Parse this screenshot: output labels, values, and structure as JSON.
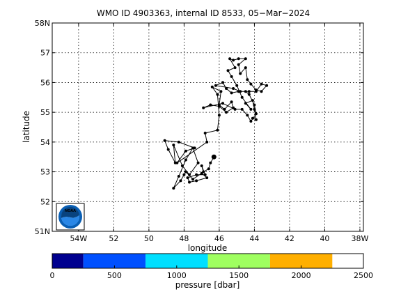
{
  "chart_data": {
    "type": "line",
    "title": "WMO ID 4903363, internal ID 8533, 05−Mar−2024",
    "xlabel": "longitude",
    "ylabel": "latitude",
    "xlim": [
      -55.5,
      -37.8
    ],
    "ylim": [
      51,
      58
    ],
    "grid": true,
    "x_ticks": [
      {
        "value": -54,
        "label": "54W"
      },
      {
        "value": -52,
        "label": "52"
      },
      {
        "value": -50,
        "label": "50"
      },
      {
        "value": -48,
        "label": "48"
      },
      {
        "value": -46,
        "label": "46"
      },
      {
        "value": -44,
        "label": "44"
      },
      {
        "value": -42,
        "label": "42"
      },
      {
        "value": -40,
        "label": "40"
      },
      {
        "value": -38,
        "label": "38W"
      }
    ],
    "y_ticks": [
      {
        "value": 51,
        "label": "51N"
      },
      {
        "value": 52,
        "label": "52"
      },
      {
        "value": 53,
        "label": "53"
      },
      {
        "value": 54,
        "label": "54"
      },
      {
        "value": 55,
        "label": "55"
      },
      {
        "value": 56,
        "label": "56"
      },
      {
        "value": 57,
        "label": "57"
      },
      {
        "value": 58,
        "label": "58N"
      }
    ],
    "series": [
      {
        "color": "#000000",
        "points": [
          [
            -46.3,
            53.5
          ],
          [
            -46.5,
            53.3
          ],
          [
            -46.6,
            53.1
          ],
          [
            -46.9,
            53.0
          ],
          [
            -47.0,
            53.2
          ],
          [
            -46.8,
            52.9
          ],
          [
            -47.3,
            52.9
          ],
          [
            -47.8,
            52.8
          ],
          [
            -47.7,
            52.65
          ],
          [
            -47.3,
            52.7
          ],
          [
            -46.7,
            52.8
          ],
          [
            -47.0,
            52.95
          ],
          [
            -47.5,
            52.75
          ],
          [
            -47.9,
            53.0
          ],
          [
            -48.0,
            52.9
          ],
          [
            -48.2,
            52.7
          ],
          [
            -48.6,
            52.45
          ],
          [
            -48.3,
            52.85
          ],
          [
            -47.9,
            53.4
          ],
          [
            -47.5,
            53.8
          ],
          [
            -47.2,
            53.3
          ],
          [
            -47.7,
            52.9
          ],
          [
            -48.1,
            53.2
          ],
          [
            -48.6,
            53.9
          ],
          [
            -48.5,
            53.3
          ],
          [
            -48.9,
            53.75
          ],
          [
            -49.1,
            54.05
          ],
          [
            -48.3,
            54.0
          ],
          [
            -47.4,
            53.8
          ],
          [
            -47.9,
            53.7
          ],
          [
            -48.4,
            53.3
          ],
          [
            -46.7,
            54.0
          ],
          [
            -46.8,
            54.3
          ],
          [
            -46.1,
            54.4
          ],
          [
            -46.0,
            54.9
          ],
          [
            -46.1,
            55.6
          ],
          [
            -46.4,
            55.85
          ],
          [
            -45.9,
            55.7
          ],
          [
            -46.0,
            55.25
          ],
          [
            -45.7,
            55.1
          ],
          [
            -45.3,
            55.35
          ],
          [
            -45.2,
            55.15
          ],
          [
            -45.6,
            55.0
          ],
          [
            -46.0,
            55.2
          ],
          [
            -46.5,
            55.25
          ],
          [
            -46.9,
            55.15
          ],
          [
            -45.8,
            55.3
          ],
          [
            -45.1,
            55.1
          ],
          [
            -44.7,
            55.1
          ],
          [
            -44.4,
            54.9
          ],
          [
            -44.2,
            54.7
          ],
          [
            -43.9,
            54.95
          ],
          [
            -44.0,
            55.25
          ],
          [
            -44.3,
            55.6
          ],
          [
            -44.5,
            55.7
          ],
          [
            -44.9,
            55.7
          ],
          [
            -45.3,
            55.65
          ],
          [
            -45.6,
            55.8
          ],
          [
            -45.8,
            56.0
          ],
          [
            -46.2,
            55.9
          ],
          [
            -45.2,
            55.8
          ],
          [
            -44.8,
            55.7
          ],
          [
            -44.3,
            55.7
          ],
          [
            -43.9,
            55.7
          ],
          [
            -43.6,
            55.95
          ],
          [
            -43.3,
            55.9
          ],
          [
            -43.6,
            55.7
          ],
          [
            -43.9,
            55.75
          ],
          [
            -44.2,
            55.95
          ],
          [
            -44.4,
            56.1
          ],
          [
            -44.5,
            56.5
          ],
          [
            -44.8,
            56.3
          ],
          [
            -44.9,
            56.6
          ],
          [
            -44.5,
            56.8
          ],
          [
            -44.9,
            56.8
          ],
          [
            -45.2,
            56.75
          ],
          [
            -45.4,
            56.8
          ],
          [
            -45.1,
            56.5
          ],
          [
            -45.5,
            56.4
          ],
          [
            -45.3,
            56.2
          ],
          [
            -45.0,
            55.9
          ],
          [
            -44.7,
            55.5
          ],
          [
            -44.2,
            55.1
          ],
          [
            -44.5,
            55.3
          ],
          [
            -44.1,
            55.4
          ],
          [
            -44.0,
            55.1
          ],
          [
            -43.9,
            54.75
          ],
          [
            -44.1,
            54.8
          ]
        ]
      }
    ],
    "colorbar": {
      "label": "pressure [dbar]",
      "range": [
        0,
        2500
      ],
      "ticks": [
        {
          "value": 0,
          "label": "0"
        },
        {
          "value": 500,
          "label": "500"
        },
        {
          "value": 1000,
          "label": "1000"
        },
        {
          "value": 1500,
          "label": "1500"
        },
        {
          "value": 2000,
          "label": "2000"
        },
        {
          "value": 2500,
          "label": "2500"
        }
      ],
      "segments": [
        {
          "from": 0,
          "to": 250,
          "color": "#00008f"
        },
        {
          "from": 250,
          "to": 750,
          "color": "#0050ff"
        },
        {
          "from": 750,
          "to": 1250,
          "color": "#00dfff"
        },
        {
          "from": 1250,
          "to": 1750,
          "color": "#9fff60"
        },
        {
          "from": 1750,
          "to": 2250,
          "color": "#ffaf00"
        }
      ]
    },
    "logo": {
      "text": "NOAA",
      "ring_color": "#0a5fb4",
      "sky_color": "#08437f"
    }
  }
}
